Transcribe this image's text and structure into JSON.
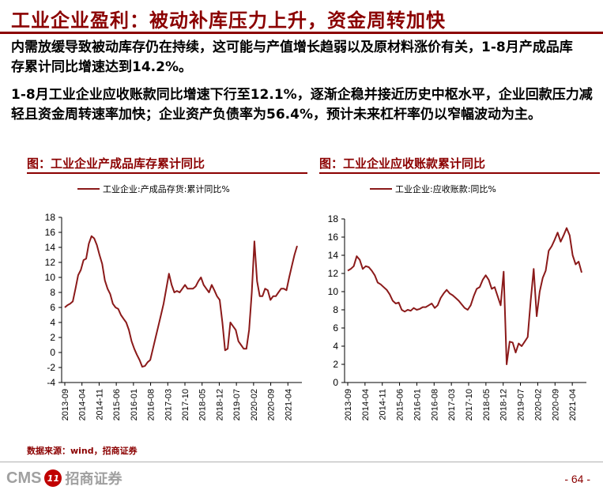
{
  "slide": {
    "title": "工业企业盈利：被动补库压力上升，资金周转加快",
    "bullet1": "内需放缓导致被动库存仍在持续，这可能与产值增长趋弱以及原材料涨价有关，1-8月产成品库存累计同比增速达到14.2%。",
    "bullet2": "1-8月工业企业应收账款同比增速下行至12.1%，逐渐企稳并接近历史中枢水平，企业回款压力减轻且资金周转速率加快；企业资产负债率为56.4%，预计未来杠杆率仍以窄幅波动为主。",
    "source": "数据来源：wind，招商证券",
    "page": "- 64 -",
    "logo_cms": "CMS",
    "logo_cn": "招商证券",
    "logo_mark": "11",
    "line_color": "#8b1a1a",
    "accent_color": "#8b0000"
  },
  "chart_data": [
    {
      "type": "line",
      "panel_title": "图：工业企业产成品库存累计同比",
      "title": "",
      "xlabel": "",
      "ylabel": "",
      "ylim": [
        -4,
        18
      ],
      "yticks": [
        "18",
        "16",
        "14",
        "12",
        "10",
        "8",
        "6",
        "4",
        "2",
        "0",
        "-2",
        "-4"
      ],
      "xticks": [
        "2013-09",
        "2014-04",
        "2014-11",
        "2015-06",
        "2016-01",
        "2016-08",
        "2017-03",
        "2017-10",
        "2018-05",
        "2018-12",
        "2019-07",
        "2020-02",
        "2020-09",
        "2021-04"
      ],
      "grid": false,
      "legend": "top-left",
      "series": [
        {
          "name": "工业企业:产成品存货:累计同比%",
          "values": [
            6.0,
            6.3,
            6.5,
            6.8,
            8.5,
            10.3,
            11.0,
            12.3,
            12.5,
            14.5,
            15.5,
            15.2,
            14.3,
            13.0,
            11.8,
            9.6,
            8.5,
            7.8,
            6.5,
            6.0,
            5.8,
            5.0,
            4.5,
            4.0,
            3.0,
            1.5,
            0.5,
            -0.3,
            -1.0,
            -1.9,
            -1.8,
            -1.3,
            -1.0,
            0.5,
            2.0,
            3.5,
            5.0,
            6.5,
            8.5,
            10.5,
            9.0,
            8.0,
            8.2,
            8.0,
            8.5,
            9.0,
            8.5,
            8.5,
            8.5,
            8.8,
            9.5,
            10.0,
            9.0,
            8.5,
            8.0,
            9.0,
            8.3,
            7.5,
            7.0,
            4.0,
            0.3,
            0.5,
            4.0,
            3.5,
            3.0,
            1.5,
            1.0,
            0.5,
            0.5,
            3.0,
            8.0,
            14.8,
            9.5,
            7.5,
            7.5,
            8.5,
            8.3,
            7.0,
            7.5,
            7.5,
            8.0,
            8.5,
            8.5,
            8.3,
            10.0,
            11.5,
            13.0,
            14.2
          ]
        }
      ]
    },
    {
      "type": "line",
      "panel_title": "图：工业企业应收账款累计同比",
      "title": "",
      "xlabel": "",
      "ylabel": "",
      "ylim": [
        0,
        18
      ],
      "yticks": [
        "18",
        "16",
        "14",
        "12",
        "10",
        "8",
        "6",
        "4",
        "2",
        "0"
      ],
      "xticks": [
        "2013-09",
        "2014-04",
        "2014-11",
        "2015-06",
        "2016-01",
        "2016-08",
        "2017-03",
        "2017-10",
        "2018-05",
        "2018-12",
        "2019-07",
        "2020-02",
        "2020-09",
        "2021-04"
      ],
      "grid": false,
      "legend": "top-left",
      "series": [
        {
          "name": "工业企业:应收账款:同比%",
          "values": [
            12.3,
            12.5,
            12.8,
            13.9,
            13.5,
            12.5,
            12.8,
            12.7,
            12.3,
            11.8,
            11.0,
            10.8,
            10.5,
            10.2,
            9.7,
            9.0,
            8.7,
            8.8,
            8.0,
            7.8,
            8.0,
            7.9,
            8.2,
            8.0,
            8.1,
            8.3,
            8.3,
            8.5,
            8.7,
            8.2,
            8.5,
            9.3,
            9.8,
            10.2,
            9.8,
            9.6,
            9.3,
            9.0,
            8.6,
            8.2,
            8.0,
            8.5,
            9.5,
            10.3,
            10.5,
            11.3,
            11.8,
            11.3,
            10.3,
            10.5,
            9.5,
            8.5,
            12.2,
            2.0,
            4.5,
            4.4,
            3.3,
            4.3,
            4.0,
            4.5,
            5.0,
            9.0,
            12.5,
            7.3,
            10.0,
            11.5,
            12.3,
            14.5,
            15.0,
            15.7,
            16.5,
            15.5,
            16.2,
            17.0,
            16.2,
            14.0,
            13.0,
            13.3,
            12.1
          ]
        }
      ]
    }
  ]
}
